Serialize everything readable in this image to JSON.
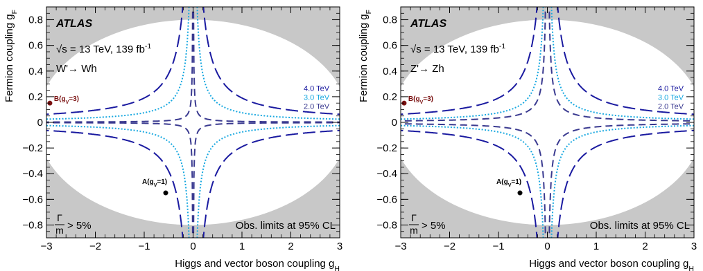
{
  "chart_data": [
    {
      "type": "line",
      "experiment": "ATLAS",
      "energy_text": "√s = 13 TeV, 139 fb",
      "energy_sup": "-1",
      "channel": "W'→ Wh",
      "xlabel": "Higgs and vector boson coupling g",
      "xlabel_sub": "H",
      "ylabel": "Fermion coupling g",
      "ylabel_sub": "F",
      "xlim": [
        -3,
        3
      ],
      "ylim": [
        -0.9,
        0.9
      ],
      "xticks": [
        -3,
        -2,
        -1,
        0,
        1,
        2,
        3
      ],
      "yticks": [
        -0.8,
        -0.6,
        -0.4,
        -0.2,
        0,
        0.2,
        0.4,
        0.6,
        0.8
      ],
      "exclusion_region": {
        "label_num": "Γ",
        "label_den": "m",
        "label_rest": "> 5%",
        "ellipse_gH_semi_axis": 3.2,
        "ellipse_gF_semi_axis": 0.8,
        "color": "#c8c8c8"
      },
      "obs_note": "Obs. limits at 95% CL",
      "series": [
        {
          "name": "4.0 TeV",
          "color": "#1a1aa0",
          "style": "long-dash",
          "k": 0.19
        },
        {
          "name": "3.0 TeV",
          "color": "#18a8e0",
          "style": "dotted",
          "k": 0.075
        },
        {
          "name": "2.0 TeV",
          "color": "#3a3a90",
          "style": "dash",
          "k": 0.0072
        }
      ],
      "benchmarks": [
        {
          "label": "A(g",
          "label_sub": "V",
          "label_end": "=1)",
          "x": -0.56,
          "y": -0.55,
          "color": "#000000"
        },
        {
          "label": "B(g",
          "label_sub": "V",
          "label_end": "=3)",
          "x": -2.93,
          "y": 0.15,
          "color": "#7a1010"
        }
      ]
    },
    {
      "type": "line",
      "experiment": "ATLAS",
      "energy_text": "√s = 13 TeV, 139 fb",
      "energy_sup": "-1",
      "channel": "Z'→ Zh",
      "xlabel": "Higgs and vector boson coupling g",
      "xlabel_sub": "H",
      "ylabel": "Fermion coupling g",
      "ylabel_sub": "F",
      "xlim": [
        -3,
        3
      ],
      "ylim": [
        -0.9,
        0.9
      ],
      "xticks": [
        -3,
        -2,
        -1,
        0,
        1,
        2,
        3
      ],
      "yticks": [
        -0.8,
        -0.6,
        -0.4,
        -0.2,
        0,
        0.2,
        0.4,
        0.6,
        0.8
      ],
      "exclusion_region": {
        "label_num": "Γ",
        "label_den": "m",
        "label_rest": "> 5%",
        "ellipse_gH_semi_axis": 3.2,
        "ellipse_gF_semi_axis": 0.8,
        "color": "#c8c8c8"
      },
      "obs_note": "Obs. limits at 95% CL",
      "series": [
        {
          "name": "4.0 TeV",
          "color": "#1a1aa0",
          "style": "long-dash",
          "k": 0.19
        },
        {
          "name": "3.0 TeV",
          "color": "#18a8e0",
          "style": "dotted",
          "k": 0.075
        },
        {
          "name": "2.0 TeV",
          "color": "#3a3a90",
          "style": "dash",
          "k": 0.035
        }
      ],
      "benchmarks": [
        {
          "label": "A(g",
          "label_sub": "V",
          "label_end": "=1)",
          "x": -0.56,
          "y": -0.55,
          "color": "#000000"
        },
        {
          "label": "B(g",
          "label_sub": "V",
          "label_end": "=3)",
          "x": -2.93,
          "y": 0.15,
          "color": "#7a1010"
        }
      ]
    }
  ]
}
